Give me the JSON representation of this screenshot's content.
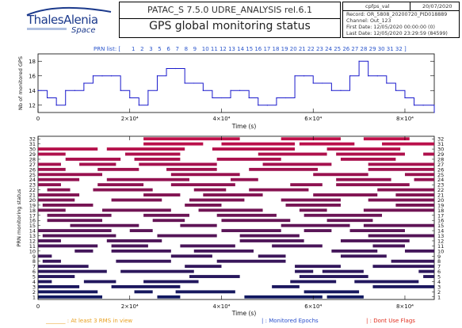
{
  "header": {
    "logo_main": "ThalesAlenia",
    "logo_sub": "Space",
    "app_line": "PATAC_S   7.5.0   UDRE_ANALYSIS   rel.6.1",
    "title": "GPS global monitoring status",
    "info": {
      "file": "cpfps_val",
      "date": "20/07/2020",
      "record": "Record: OR_5808_20200720_PID018889",
      "channel": "Channel: Out_123",
      "first_date": "First Date: 12/05/2020 00:00:00 (0)",
      "last_date": "Last Date: 12/05/2020 23:29:59 (84599)"
    }
  },
  "prn_list": {
    "label": "PRN list: [",
    "close": "]",
    "items": [
      "1",
      "2",
      "3",
      "5",
      "6",
      "7",
      "8",
      "9",
      "10",
      "11",
      "12",
      "13",
      "14",
      "15",
      "16",
      "17",
      "18",
      "19",
      "20",
      "21",
      "22",
      "23",
      "24",
      "25",
      "26",
      "27",
      "28",
      "29",
      "30",
      "31",
      "32"
    ]
  },
  "colors": {
    "line": "#1a1acc",
    "prn_label": "#2a55cc",
    "legend_orange": "#e8a020",
    "legend_blue": "#2a4fcc",
    "legend_red": "#e03020",
    "bar_low": "#101860",
    "bar_high": "#c0104a"
  },
  "chart_data": [
    {
      "type": "line",
      "title": "",
      "ylabel": "Nb of monitored GPS",
      "xlabel": "Time (s)",
      "xlim": [
        0,
        86400
      ],
      "ylim": [
        11,
        19
      ],
      "yticks": [
        12,
        14,
        16,
        18
      ],
      "xticks": [
        0,
        20000,
        40000,
        60000,
        80000
      ],
      "xtick_labels": [
        "0",
        "2×10⁴",
        "4×10⁴",
        "6×10⁴",
        "8×10⁴"
      ],
      "x": [
        0,
        2000,
        4000,
        6000,
        8000,
        10000,
        12000,
        14000,
        16000,
        18000,
        20000,
        22000,
        24000,
        26000,
        28000,
        30000,
        32000,
        34000,
        36000,
        38000,
        40000,
        42000,
        44000,
        46000,
        48000,
        50000,
        52000,
        54000,
        56000,
        58000,
        60000,
        62000,
        64000,
        66000,
        68000,
        70000,
        72000,
        74000,
        76000,
        78000,
        80000,
        82000,
        84000,
        86400
      ],
      "y": [
        14,
        13,
        12,
        14,
        14,
        15,
        16,
        16,
        16,
        14,
        13,
        12,
        14,
        16,
        17,
        17,
        15,
        15,
        14,
        13,
        13,
        14,
        14,
        13,
        12,
        12,
        13,
        13,
        16,
        16,
        15,
        15,
        14,
        14,
        16,
        18,
        16,
        16,
        15,
        14,
        13,
        12,
        12,
        11
      ]
    },
    {
      "type": "bar",
      "subtype": "gantt",
      "ylabel": "PRN monitoring status",
      "xlabel": "Time (s)",
      "xlim": [
        0,
        86400
      ],
      "ylim": [
        0.5,
        32.5
      ],
      "xticks": [
        0,
        20000,
        40000,
        60000,
        80000
      ],
      "xtick_labels": [
        "0",
        "2×10⁴",
        "4×10⁴",
        "6×10⁴",
        "8×10⁴"
      ],
      "yticks": [
        "1",
        "2",
        "3",
        "4",
        "5",
        "6",
        "7",
        "8",
        "9",
        "10",
        "11",
        "12",
        "13",
        "14",
        "15",
        "16",
        "17",
        "18",
        "19",
        "20",
        "21",
        "22",
        "23",
        "24",
        "25",
        "26",
        "27",
        "28",
        "29",
        "30",
        "31",
        "32"
      ],
      "series": [
        {
          "prn": 1,
          "intervals": [
            [
              0,
              14000
            ],
            [
              26000,
              31000
            ],
            [
              45000,
              62000
            ],
            [
              63000,
              71000
            ]
          ]
        },
        {
          "prn": 2,
          "intervals": [
            [
              0,
              13000
            ],
            [
              21000,
              25000
            ],
            [
              30000,
              43000
            ],
            [
              58000,
              70000
            ]
          ]
        },
        {
          "prn": 3,
          "intervals": [
            [
              0,
              9000
            ],
            [
              16000,
              31000
            ],
            [
              51000,
              57000
            ],
            [
              73000,
              86400
            ]
          ]
        },
        {
          "prn": 4,
          "intervals": [
            [
              0,
              3000
            ],
            [
              10000,
              17000
            ],
            [
              23000,
              35000
            ],
            [
              55000,
              65000
            ],
            [
              69000,
              83000
            ]
          ]
        },
        {
          "prn": 5,
          "intervals": [
            [
              0,
              8000
            ],
            [
              33000,
              44000
            ],
            [
              57000,
              72000
            ],
            [
              84000,
              86400
            ]
          ]
        },
        {
          "prn": 6,
          "intervals": [
            [
              0,
              15000
            ],
            [
              18000,
              34000
            ],
            [
              56000,
              60000
            ],
            [
              62000,
              71000
            ],
            [
              83000,
              86400
            ]
          ]
        },
        {
          "prn": 7,
          "intervals": [
            [
              0,
              11000
            ],
            [
              32000,
              40000
            ],
            [
              56000,
              66000
            ],
            [
              73000,
              86400
            ]
          ]
        },
        {
          "prn": 8,
          "intervals": [
            [
              1000,
              5000
            ],
            [
              17000,
              29000
            ],
            [
              39000,
              54000
            ],
            [
              77000,
              86400
            ]
          ]
        },
        {
          "prn": 9,
          "intervals": [
            [
              0,
              3000
            ],
            [
              29000,
              38000
            ],
            [
              48000,
              54000
            ],
            [
              66000,
              76000
            ]
          ]
        },
        {
          "prn": 10,
          "intervals": [
            [
              8000,
              12000
            ],
            [
              16000,
              29000
            ],
            [
              34000,
              47000
            ],
            [
              64000,
              74000
            ],
            [
              80000,
              86400
            ]
          ]
        },
        {
          "prn": 11,
          "intervals": [
            [
              0,
              13000
            ],
            [
              16000,
              24000
            ],
            [
              31000,
              43000
            ],
            [
              51000,
              62000
            ],
            [
              73000,
              80000
            ]
          ]
        },
        {
          "prn": 12,
          "intervals": [
            [
              0,
              5000
            ],
            [
              15000,
              27000
            ],
            [
              44000,
              58000
            ],
            [
              66000,
              81000
            ]
          ]
        },
        {
          "prn": 13,
          "intervals": [
            [
              1000,
              17000
            ],
            [
              26000,
              39000
            ],
            [
              44000,
              57000
            ],
            [
              72000,
              86400
            ]
          ]
        },
        {
          "prn": 14,
          "intervals": [
            [
              0,
              16000
            ],
            [
              20000,
              25000
            ],
            [
              40000,
              53000
            ],
            [
              58000,
              64000
            ],
            [
              68000,
              80000
            ]
          ]
        },
        {
          "prn": 15,
          "intervals": [
            [
              7000,
              22000
            ],
            [
              31000,
              39000
            ],
            [
              53000,
              68000
            ],
            [
              71000,
              86400
            ]
          ]
        },
        {
          "prn": 16,
          "intervals": [
            [
              2000,
              14000
            ],
            [
              25000,
              32000
            ],
            [
              40000,
              55000
            ],
            [
              63000,
              73000
            ]
          ]
        },
        {
          "prn": 17,
          "intervals": [
            [
              2000,
              16000
            ],
            [
              23000,
              33000
            ],
            [
              39000,
              52000
            ],
            [
              58000,
              75000
            ]
          ]
        },
        {
          "prn": 18,
          "intervals": [
            [
              0,
              6000
            ],
            [
              14000,
              29000
            ],
            [
              35000,
              49000
            ],
            [
              57000,
              63000
            ],
            [
              71000,
              86400
            ]
          ]
        },
        {
          "prn": 19,
          "intervals": [
            [
              1000,
              12000
            ],
            [
              32000,
              40000
            ],
            [
              54000,
              66000
            ],
            [
              78000,
              86400
            ]
          ]
        },
        {
          "prn": 20,
          "intervals": [
            [
              0,
              8000
            ],
            [
              16000,
              27000
            ],
            [
              33000,
              45000
            ],
            [
              53000,
              66000
            ],
            [
              72000,
              86400
            ]
          ]
        },
        {
          "prn": 21,
          "intervals": [
            [
              0,
              9000
            ],
            [
              23000,
              31000
            ],
            [
              36000,
              49000
            ],
            [
              60000,
              74000
            ],
            [
              78000,
              86400
            ]
          ]
        },
        {
          "prn": 22,
          "intervals": [
            [
              2000,
              7000
            ],
            [
              12000,
              25000
            ],
            [
              34000,
              41000
            ],
            [
              46000,
              59000
            ],
            [
              74000,
              86400
            ]
          ]
        },
        {
          "prn": 23,
          "intervals": [
            [
              0,
              5000
            ],
            [
              13000,
              23000
            ],
            [
              29000,
              43000
            ],
            [
              55000,
              62000
            ],
            [
              65000,
              81000
            ]
          ]
        },
        {
          "prn": 24,
          "intervals": [
            [
              0,
              9000
            ],
            [
              15000,
              33000
            ],
            [
              42000,
              48000
            ],
            [
              65000,
              77000
            ],
            [
              82000,
              86400
            ]
          ]
        },
        {
          "prn": 25,
          "intervals": [
            [
              0,
              14000
            ],
            [
              29000,
              44000
            ],
            [
              60000,
              72000
            ],
            [
              80000,
              86400
            ]
          ]
        },
        {
          "prn": 26,
          "intervals": [
            [
              0,
              6000
            ],
            [
              13000,
              22000
            ],
            [
              28000,
              39000
            ],
            [
              46000,
              61000
            ],
            [
              72000,
              86400
            ]
          ]
        },
        {
          "prn": 27,
          "intervals": [
            [
              0,
              5000
            ],
            [
              9000,
              17000
            ],
            [
              22000,
              39000
            ],
            [
              49000,
              64000
            ],
            [
              72000,
              86400
            ]
          ]
        },
        {
          "prn": 28,
          "intervals": [
            [
              6000,
              18000
            ],
            [
              21000,
              31000
            ],
            [
              39000,
              53000
            ],
            [
              66000,
              78000
            ]
          ]
        },
        {
          "prn": 29,
          "intervals": [
            [
              0,
              6000
            ],
            [
              19000,
              31000
            ],
            [
              48000,
              63000
            ],
            [
              65000,
              80000
            ],
            [
              84000,
              86400
            ]
          ]
        },
        {
          "prn": 30,
          "intervals": [
            [
              0,
              13000
            ],
            [
              15000,
              32000
            ],
            [
              38000,
              56000
            ],
            [
              63000,
              79000
            ]
          ]
        },
        {
          "prn": 31,
          "intervals": [
            [
              23000,
              36000
            ],
            [
              40000,
              56000
            ],
            [
              57000,
              69000
            ],
            [
              75000,
              86400
            ]
          ]
        },
        {
          "prn": 32,
          "intervals": [
            [
              23000,
              44000
            ],
            [
              53000,
              66000
            ],
            [
              71000,
              81000
            ]
          ]
        }
      ],
      "legend": [
        {
          "label": "At least 3 RMS in view",
          "prefix": "_______ :",
          "color_key": "legend_orange"
        },
        {
          "label": "Monitored Epochs",
          "prefix": "| :",
          "color_key": "legend_blue"
        },
        {
          "label": "Dont Use Flags",
          "prefix": "| :",
          "color_key": "legend_red"
        }
      ]
    }
  ]
}
